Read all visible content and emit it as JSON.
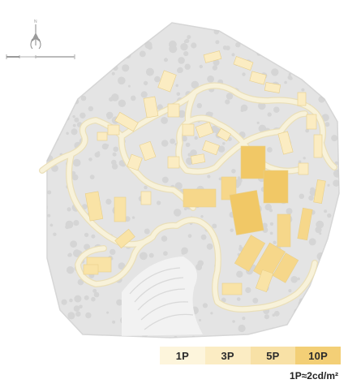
{
  "map": {
    "colors": {
      "site": "#e4e4e4",
      "site_edge": "#d6d6d6",
      "road": "#f8f2da",
      "road_edge": "#eadfb9",
      "tree": "#c9c9c9",
      "quarry": "#f2f2f2",
      "building_1p": "#fbecc2",
      "building_3p": "#f9e3a6",
      "building_5p": "#f6d78a",
      "building_10p": "#f1c866"
    },
    "compass_icon": "north-arrow",
    "scale_icon": "scale-bar"
  },
  "legend": {
    "items": [
      {
        "label": "1P",
        "color": "#fdf5dc"
      },
      {
        "label": "3P",
        "color": "#fbecc3"
      },
      {
        "label": "5P",
        "color": "#f8e1a6"
      },
      {
        "label": "10P",
        "color": "#f3cf76"
      }
    ]
  },
  "note": "1P≈2cd/m²"
}
